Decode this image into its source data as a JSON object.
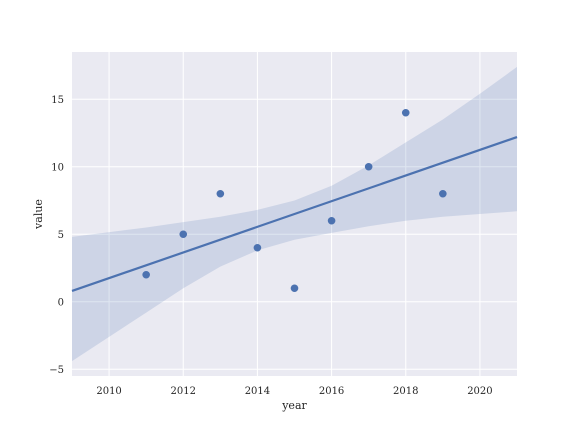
{
  "chart_data": {
    "type": "scatter",
    "xlabel": "year",
    "ylabel": "value",
    "xlim": [
      2009,
      2021
    ],
    "ylim": [
      -5.5,
      18.5
    ],
    "xticks": [
      2010,
      2012,
      2014,
      2016,
      2018,
      2020
    ],
    "yticks": [
      -5,
      0,
      5,
      10,
      15
    ],
    "ytick_labels": [
      "−5",
      "0",
      "5",
      "10",
      "15"
    ],
    "grid": true,
    "points": [
      {
        "x": 2011,
        "y": 2
      },
      {
        "x": 2012,
        "y": 5
      },
      {
        "x": 2013,
        "y": 8
      },
      {
        "x": 2014,
        "y": 4
      },
      {
        "x": 2015,
        "y": 1
      },
      {
        "x": 2016,
        "y": 6
      },
      {
        "x": 2017,
        "y": 10
      },
      {
        "x": 2018,
        "y": 14
      },
      {
        "x": 2019,
        "y": 8
      }
    ],
    "regression": {
      "line": [
        [
          2009,
          0.8
        ],
        [
          2021,
          12.2
        ]
      ],
      "ci_upper": [
        [
          2009,
          4.8
        ],
        [
          2011,
          5.5
        ],
        [
          2013,
          6.3
        ],
        [
          2014,
          6.8
        ],
        [
          2015,
          7.5
        ],
        [
          2016,
          8.6
        ],
        [
          2017,
          10.1
        ],
        [
          2018,
          11.8
        ],
        [
          2019,
          13.5
        ],
        [
          2020,
          15.4
        ],
        [
          2021,
          17.4
        ]
      ],
      "ci_lower": [
        [
          2009,
          -4.4
        ],
        [
          2010,
          -2.6
        ],
        [
          2011,
          -0.8
        ],
        [
          2012,
          1.0
        ],
        [
          2013,
          2.6
        ],
        [
          2014,
          3.8
        ],
        [
          2015,
          4.6
        ],
        [
          2016,
          5.1
        ],
        [
          2017,
          5.6
        ],
        [
          2018,
          6.0
        ],
        [
          2019,
          6.3
        ],
        [
          2020,
          6.5
        ],
        [
          2021,
          6.7
        ]
      ]
    },
    "colors": {
      "background": "#eaeaf2",
      "grid": "#ffffff",
      "points": "#4c72b0",
      "line": "#4c72b0",
      "band": "#4c72b0"
    }
  }
}
